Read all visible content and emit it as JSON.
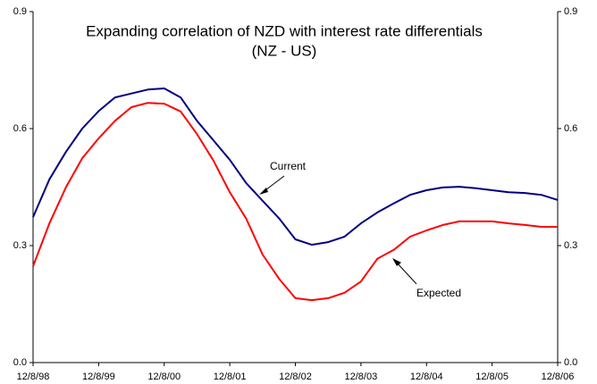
{
  "chart_data": {
    "type": "line",
    "title": "Expanding correlation of NZD with interest rate differentials",
    "subtitle": "(NZ - US)",
    "categories": [
      "12/8/98",
      null,
      null,
      null,
      "12/8/99",
      null,
      null,
      null,
      "12/8/00",
      null,
      null,
      null,
      "12/8/01",
      null,
      null,
      null,
      "12/8/02",
      null,
      null,
      null,
      "12/8/03",
      null,
      null,
      null,
      "12/8/04",
      null,
      null,
      null,
      "12/8/05",
      null,
      null,
      null,
      "12/8/06"
    ],
    "series": [
      {
        "name": "Current",
        "color": "#000080",
        "values": [
          0.373,
          0.47,
          0.54,
          0.6,
          0.645,
          0.68,
          0.69,
          0.7,
          0.703,
          0.68,
          0.62,
          0.57,
          0.52,
          0.46,
          0.415,
          0.37,
          0.316,
          0.302,
          0.309,
          0.323,
          0.357,
          0.385,
          0.408,
          0.43,
          0.442,
          0.449,
          0.451,
          0.447,
          0.442,
          0.437,
          0.435,
          0.43,
          0.417
        ]
      },
      {
        "name": "Expected",
        "color": "#ff0000",
        "values": [
          0.247,
          0.357,
          0.449,
          0.524,
          0.575,
          0.62,
          0.655,
          0.666,
          0.664,
          0.644,
          0.586,
          0.518,
          0.437,
          0.369,
          0.277,
          0.215,
          0.165,
          0.16,
          0.165,
          0.179,
          0.208,
          0.266,
          0.289,
          0.323,
          0.339,
          0.353,
          0.362,
          0.362,
          0.362,
          0.357,
          0.353,
          0.348,
          0.348
        ]
      }
    ],
    "ylim": [
      0,
      0.9
    ],
    "yticks": [
      {
        "value": 0,
        "label": "0.0"
      },
      0.3,
      0.6,
      0.9
    ],
    "y2lim": [
      0,
      0.9
    ],
    "y2ticks": [
      {
        "value": 0,
        "label": "0.0"
      },
      0.3,
      0.6,
      0.9
    ],
    "grid": false
  }
}
